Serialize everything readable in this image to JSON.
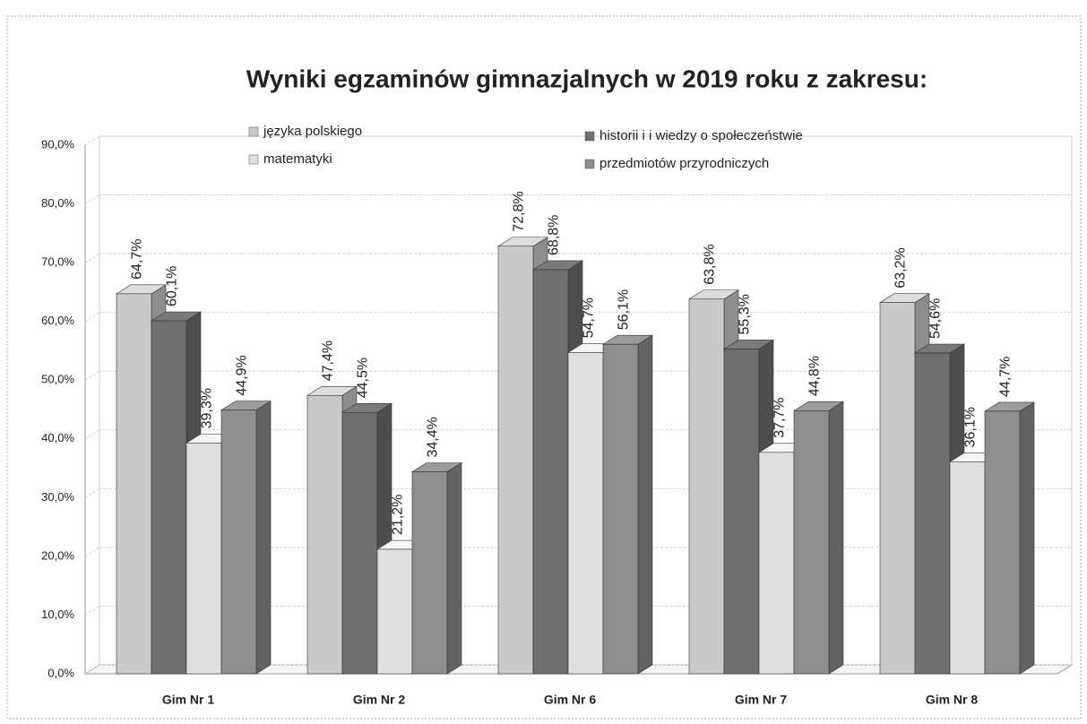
{
  "chart_data": {
    "type": "bar3d",
    "title": "Wyniki egzaminów gimnazjalnych w 2019 roku z zakresu:",
    "categories": [
      "Gim Nr 1",
      "Gim Nr 2",
      "Gim Nr 6",
      "Gim Nr 7",
      "Gim Nr 8"
    ],
    "series": [
      {
        "name": "języka polskiego",
        "color": "#c9c9c9",
        "values": [
          64.7,
          47.4,
          72.8,
          63.8,
          63.2
        ],
        "value_labels": [
          "64,7%",
          "47,4%",
          "72,8%",
          "63,8%",
          "63,2%"
        ]
      },
      {
        "name": "historii i i wiedzy o społeczeństwie",
        "color": "#6f6f6f",
        "values": [
          60.1,
          44.5,
          68.8,
          55.3,
          54.6
        ],
        "value_labels": [
          "60,1%",
          "44,5%",
          "68,8%",
          "55,3%",
          "54,6%"
        ]
      },
      {
        "name": "matematyki",
        "color": "#e0e0e0",
        "values": [
          39.3,
          21.2,
          54.7,
          37.7,
          36.1
        ],
        "value_labels": [
          "39,3%",
          "21,2%",
          "54,7%",
          "37,7%",
          "36,1%"
        ]
      },
      {
        "name": "przedmiotów przyrodniczych",
        "color": "#8e8e8e",
        "values": [
          44.9,
          34.4,
          56.1,
          44.8,
          44.7
        ],
        "value_labels": [
          "44,9%",
          "34,4%",
          "56,1%",
          "44,8%",
          "44,7%"
        ]
      }
    ],
    "ylim": [
      0,
      90
    ],
    "yticks": [
      {
        "value": 0,
        "label": "0,0%"
      },
      {
        "value": 10,
        "label": "10,0%"
      },
      {
        "value": 20,
        "label": "20,0%"
      },
      {
        "value": 30,
        "label": "30,0%"
      },
      {
        "value": 40,
        "label": "40,0%"
      },
      {
        "value": 50,
        "label": "50,0%"
      },
      {
        "value": 60,
        "label": "60,0%"
      },
      {
        "value": 70,
        "label": "70,0%"
      },
      {
        "value": 80,
        "label": "80,0%"
      },
      {
        "value": 90,
        "label": "90,0%"
      }
    ],
    "grid": true
  }
}
